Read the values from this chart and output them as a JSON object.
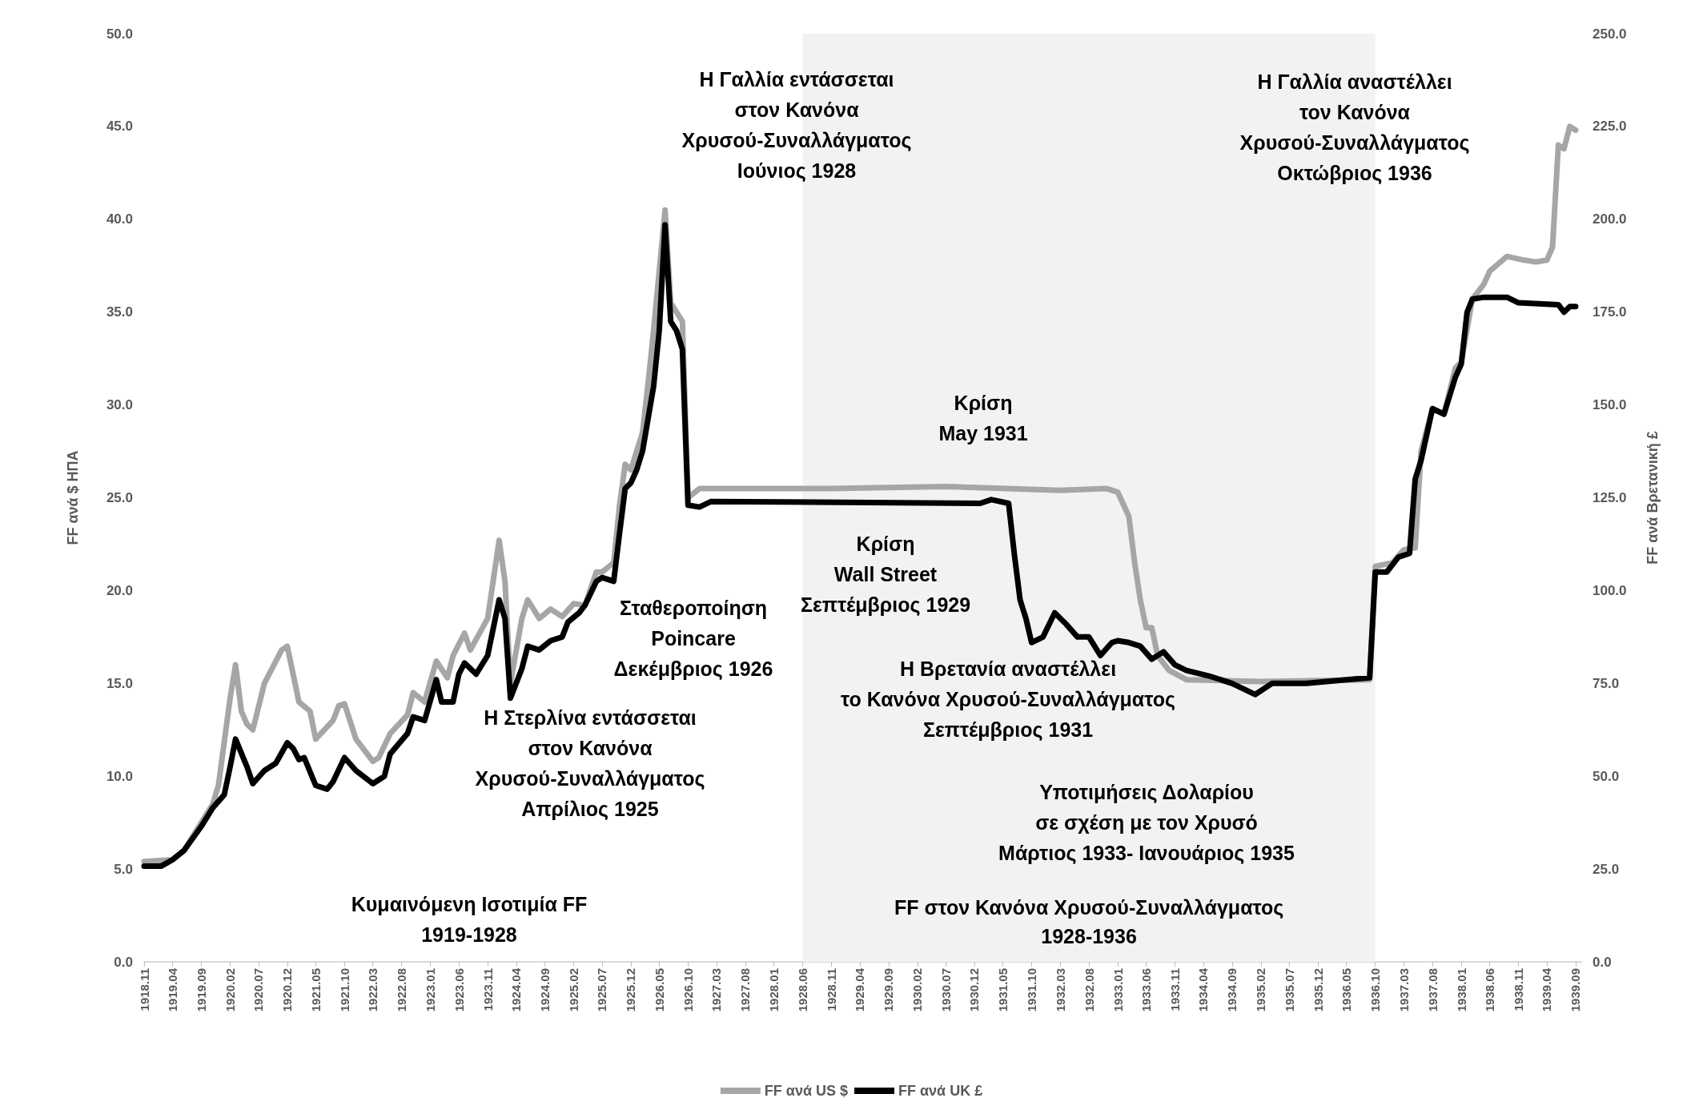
{
  "chart_data": {
    "type": "line",
    "ylabel": "FF ανά $ ΗΠΑ",
    "y2label": "FF ανά Βρετανική £",
    "legend": "bottom",
    "grid": false,
    "marker": "none",
    "line_style": "solid",
    "xlim": [
      "1918-11",
      "1939-10"
    ],
    "xticks": [
      {
        "value": "1918-11",
        "label": "1918.11"
      },
      {
        "value": "1919-04",
        "label": "1919.04"
      },
      {
        "value": "1919-09",
        "label": "1919.09"
      },
      {
        "value": "1920-02",
        "label": "1920.02"
      },
      {
        "value": "1920-07",
        "label": "1920.07"
      },
      {
        "value": "1920-12",
        "label": "1920.12"
      },
      {
        "value": "1921-05",
        "label": "1921.05"
      },
      {
        "value": "1921-10",
        "label": "1921.10"
      },
      {
        "value": "1922-03",
        "label": "1922.03"
      },
      {
        "value": "1922-08",
        "label": "1922.08"
      },
      {
        "value": "1923-01",
        "label": "1923.01"
      },
      {
        "value": "1923-06",
        "label": "1923.06"
      },
      {
        "value": "1923-11",
        "label": "1923.11"
      },
      {
        "value": "1924-04",
        "label": "1924.04"
      },
      {
        "value": "1924-09",
        "label": "1924.09"
      },
      {
        "value": "1925-02",
        "label": "1925.02"
      },
      {
        "value": "1925-07",
        "label": "1925.07"
      },
      {
        "value": "1925-12",
        "label": "1925.12"
      },
      {
        "value": "1926-05",
        "label": "1926.05"
      },
      {
        "value": "1926-10",
        "label": "1926.10"
      },
      {
        "value": "1927-03",
        "label": "1927.03"
      },
      {
        "value": "1927-08",
        "label": "1927.08"
      },
      {
        "value": "1928-01",
        "label": "1928.01"
      },
      {
        "value": "1928-06",
        "label": "1928.06"
      },
      {
        "value": "1928-11",
        "label": "1928.11"
      },
      {
        "value": "1929-04",
        "label": "1929.04"
      },
      {
        "value": "1929-09",
        "label": "1929.09"
      },
      {
        "value": "1930-02",
        "label": "1930.02"
      },
      {
        "value": "1930-07",
        "label": "1930.07"
      },
      {
        "value": "1930-12",
        "label": "1930.12"
      },
      {
        "value": "1931-05",
        "label": "1931.05"
      },
      {
        "value": "1931-10",
        "label": "1931.10"
      },
      {
        "value": "1932-03",
        "label": "1932.03"
      },
      {
        "value": "1932-08",
        "label": "1932.08"
      },
      {
        "value": "1933-01",
        "label": "1933.01"
      },
      {
        "value": "1933-06",
        "label": "1933.06"
      },
      {
        "value": "1933-11",
        "label": "1933.11"
      },
      {
        "value": "1934-04",
        "label": "1934.04"
      },
      {
        "value": "1934-09",
        "label": "1934.09"
      },
      {
        "value": "1935-02",
        "label": "1935.02"
      },
      {
        "value": "1935-07",
        "label": "1935.07"
      },
      {
        "value": "1935-12",
        "label": "1935.12"
      },
      {
        "value": "1936-05",
        "label": "1936.05"
      },
      {
        "value": "1936-10",
        "label": "1936.10"
      },
      {
        "value": "1937-03",
        "label": "1937.03"
      },
      {
        "value": "1937-08",
        "label": "1937.08"
      },
      {
        "value": "1938-01",
        "label": "1938.01"
      },
      {
        "value": "1938-06",
        "label": "1938.06"
      },
      {
        "value": "1938-11",
        "label": "1938.11"
      },
      {
        "value": "1939-04",
        "label": "1939.04"
      },
      {
        "value": "1939-09",
        "label": "1939.09"
      }
    ],
    "ylim": [
      0,
      50
    ],
    "yticks": [
      {
        "value": 0,
        "label": "0.0"
      },
      {
        "value": 5,
        "label": "5.0"
      },
      {
        "value": 10,
        "label": "10.0"
      },
      {
        "value": 15,
        "label": "15.0"
      },
      {
        "value": 20,
        "label": "20.0"
      },
      {
        "value": 25,
        "label": "25.0"
      },
      {
        "value": 30,
        "label": "30.0"
      },
      {
        "value": 35,
        "label": "35.0"
      },
      {
        "value": 40,
        "label": "40.0"
      },
      {
        "value": 45,
        "label": "45.0"
      },
      {
        "value": 50,
        "label": "50.0"
      }
    ],
    "y2lim": [
      0,
      250
    ],
    "y2ticks": [
      {
        "value": 0,
        "label": "0.0"
      },
      {
        "value": 25,
        "label": "25.0"
      },
      {
        "value": 50,
        "label": "50.0"
      },
      {
        "value": 75,
        "label": "75.0"
      },
      {
        "value": 100,
        "label": "100.0"
      },
      {
        "value": 125,
        "label": "125.0"
      },
      {
        "value": 150,
        "label": "150.0"
      },
      {
        "value": 175,
        "label": "175.0"
      },
      {
        "value": 200,
        "label": "200.0"
      },
      {
        "value": 225,
        "label": "225.0"
      },
      {
        "value": 250,
        "label": "250.0"
      }
    ],
    "series": [
      {
        "name": "FF ανά US $",
        "color": "#a6a6a6",
        "x": [
          "1918-11",
          "1919-04",
          "1919-06",
          "1919-09",
          "1919-11",
          "1919-12",
          "1920-02",
          "1920-03",
          "1920-04",
          "1920-05",
          "1920-06",
          "1920-08",
          "1920-11",
          "1920-12",
          "1921-02",
          "1921-04",
          "1921-05",
          "1921-08",
          "1921-09",
          "1921-10",
          "1921-12",
          "1922-03",
          "1922-04",
          "1922-06",
          "1922-09",
          "1922-10",
          "1922-12",
          "1923-02",
          "1923-04",
          "1923-05",
          "1923-07",
          "1923-08",
          "1923-11",
          "1924-01",
          "1924-02",
          "1924-03",
          "1924-05",
          "1924-06",
          "1924-08",
          "1924-10",
          "1924-12",
          "1925-02",
          "1925-04",
          "1925-06",
          "1925-07",
          "1925-09",
          "1925-10",
          "1925-11",
          "1925-12",
          "1926-02",
          "1926-03",
          "1926-04",
          "1926-06",
          "1926-07",
          "1926-09",
          "1926-10",
          "1926-12",
          "1928-11",
          "1930-07",
          "1932-03",
          "1932-11",
          "1933-01",
          "1933-03",
          "1933-04",
          "1933-05",
          "1933-06",
          "1933-07",
          "1933-08",
          "1933-10",
          "1934-01",
          "1935-02",
          "1936-09",
          "1936-10",
          "1937-01",
          "1937-03",
          "1937-05",
          "1937-06",
          "1937-08",
          "1937-10",
          "1937-12",
          "1938-01",
          "1938-03",
          "1938-05",
          "1938-06",
          "1938-09",
          "1938-12",
          "1939-02",
          "1939-04",
          "1939-05",
          "1939-06",
          "1939-07",
          "1939-08",
          "1939-09"
        ],
        "values": [
          5.4,
          5.5,
          6.0,
          7.5,
          8.5,
          9.5,
          14.2,
          16.0,
          13.5,
          12.8,
          12.5,
          15.0,
          16.8,
          17.0,
          14.0,
          13.5,
          12.0,
          13.0,
          13.8,
          13.9,
          12.0,
          10.8,
          11.0,
          12.3,
          13.3,
          14.5,
          14.0,
          16.2,
          15.3,
          16.5,
          17.7,
          16.8,
          18.5,
          22.7,
          20.5,
          15.0,
          18.5,
          19.5,
          18.5,
          19.0,
          18.6,
          19.3,
          19.2,
          21.0,
          21.0,
          21.5,
          24.5,
          26.8,
          26.5,
          28.5,
          31.0,
          34.0,
          40.5,
          35.5,
          34.5,
          25.0,
          25.5,
          25.5,
          25.6,
          25.4,
          25.5,
          25.3,
          24.0,
          21.5,
          19.5,
          18.0,
          18.0,
          16.5,
          15.7,
          15.2,
          15.1,
          15.2,
          21.3,
          21.5,
          22.2,
          22.3,
          27.5,
          29.8,
          29.5,
          32.0,
          32.3,
          35.7,
          36.5,
          37.2,
          38.0,
          37.8,
          37.7,
          37.8,
          38.5,
          44.0,
          43.8,
          45.0,
          44.8
        ]
      },
      {
        "name": "FF ανά UK £",
        "color": "#000000",
        "axis": "y2",
        "x": [
          "1918-11",
          "1919-02",
          "1919-04",
          "1919-06",
          "1919-09",
          "1919-11",
          "1920-01",
          "1920-02",
          "1920-03",
          "1920-05",
          "1920-06",
          "1920-08",
          "1920-10",
          "1920-12",
          "1921-01",
          "1921-02",
          "1921-03",
          "1921-05",
          "1921-07",
          "1921-08",
          "1921-10",
          "1921-12",
          "1922-03",
          "1922-05",
          "1922-06",
          "1922-09",
          "1922-10",
          "1922-12",
          "1923-02",
          "1923-03",
          "1923-05",
          "1923-06",
          "1923-07",
          "1923-09",
          "1923-11",
          "1924-01",
          "1924-02",
          "1924-03",
          "1924-05",
          "1924-06",
          "1924-08",
          "1924-10",
          "1924-12",
          "1925-01",
          "1925-03",
          "1925-04",
          "1925-06",
          "1925-07",
          "1925-09",
          "1925-10",
          "1925-11",
          "1925-12",
          "1926-01",
          "1926-02",
          "1926-04",
          "1926-05",
          "1926-06",
          "1926-07",
          "1926-08",
          "1926-09",
          "1926-10",
          "1926-12",
          "1927-02",
          "1931-01",
          "1931-03",
          "1931-06",
          "1931-07",
          "1931-08",
          "1931-09",
          "1931-10",
          "1931-12",
          "1932-02",
          "1932-04",
          "1932-06",
          "1932-08",
          "1932-10",
          "1932-12",
          "1933-01",
          "1933-03",
          "1933-05",
          "1933-07",
          "1933-09",
          "1933-11",
          "1934-01",
          "1934-05",
          "1934-09",
          "1935-01",
          "1935-04",
          "1935-10",
          "1936-05",
          "1936-09",
          "1936-10",
          "1936-12",
          "1937-02",
          "1937-04",
          "1937-05",
          "1937-06",
          "1937-08",
          "1937-10",
          "1937-12",
          "1938-01",
          "1938-02",
          "1938-03",
          "1938-05",
          "1938-09",
          "1938-11",
          "1939-06",
          "1939-07",
          "1939-08",
          "1939-09"
        ],
        "values": [
          25.8,
          25.8,
          27.5,
          30,
          36.5,
          41.5,
          45,
          52.5,
          60,
          52.5,
          48,
          51.5,
          53.5,
          59,
          57.5,
          54.5,
          55,
          47.5,
          46.5,
          48.5,
          55,
          51.5,
          48,
          50,
          56,
          61.5,
          66,
          65,
          76,
          70,
          70,
          77.5,
          80.5,
          77.5,
          82.5,
          97.5,
          92.5,
          71,
          79,
          85,
          84,
          86.5,
          87.5,
          91.5,
          94,
          96,
          102.5,
          103.5,
          102.5,
          115,
          127.5,
          129,
          132.5,
          137.5,
          155,
          170,
          198.5,
          172.5,
          170,
          165,
          123,
          122.5,
          124,
          123.5,
          124.5,
          123.5,
          110,
          97.5,
          92.5,
          86,
          87.5,
          94,
          91,
          87.5,
          87.5,
          82.5,
          86,
          86.5,
          86,
          85,
          81.5,
          83.5,
          80,
          78.5,
          77,
          75,
          72,
          75,
          75,
          76,
          76.5,
          105,
          105,
          109,
          110,
          130,
          135,
          149,
          147.5,
          157.5,
          161,
          175,
          178.5,
          179,
          179,
          177.5,
          177,
          175,
          176.5,
          176.5
        ]
      }
    ],
    "bands": [
      {
        "axis": "x",
        "from": "1928-06",
        "to": "1936-10",
        "label": "FF στον Κανόνα Χρυσού-Συναλλάγματος\n1928-1936",
        "color": "#f2f2f2"
      }
    ],
    "annotations": [
      "Η Γαλλία εντάσσεται\nστον Κανόνα\nΧρυσού-Συναλλάγματος\nΙούνιος 1928",
      "Κρίση\nMay 1931",
      "Κρίση\nWall Street\nΣεπτέμβριος 1929",
      "Σταθεροποίηση\nPoincare\nΔεκέμβριος 1926",
      "Η Στερλίνα εντάσσεται\nστον Κανόνα\nΧρυσού-Συναλλάγματος\nΑπρίλιος 1925",
      "Η Βρετανία αναστέλλει\nτο Κανόνα Χρυσού-Συναλλάγματος\nΣεπτέμβριος 1931",
      "Υποτιμήσεις Δολαρίου\nσε σχέση με τον Χρυσό\nΜάρτιος 1933- Ιανουάριος 1935",
      "Η Γαλλία αναστέλλει\nτον Κανόνα\nΧρυσού-Συναλλάγματος\nΟκτώβριος 1936",
      "Κυμαινόμενη Ισοτιμία FF\n1919-1928"
    ]
  }
}
